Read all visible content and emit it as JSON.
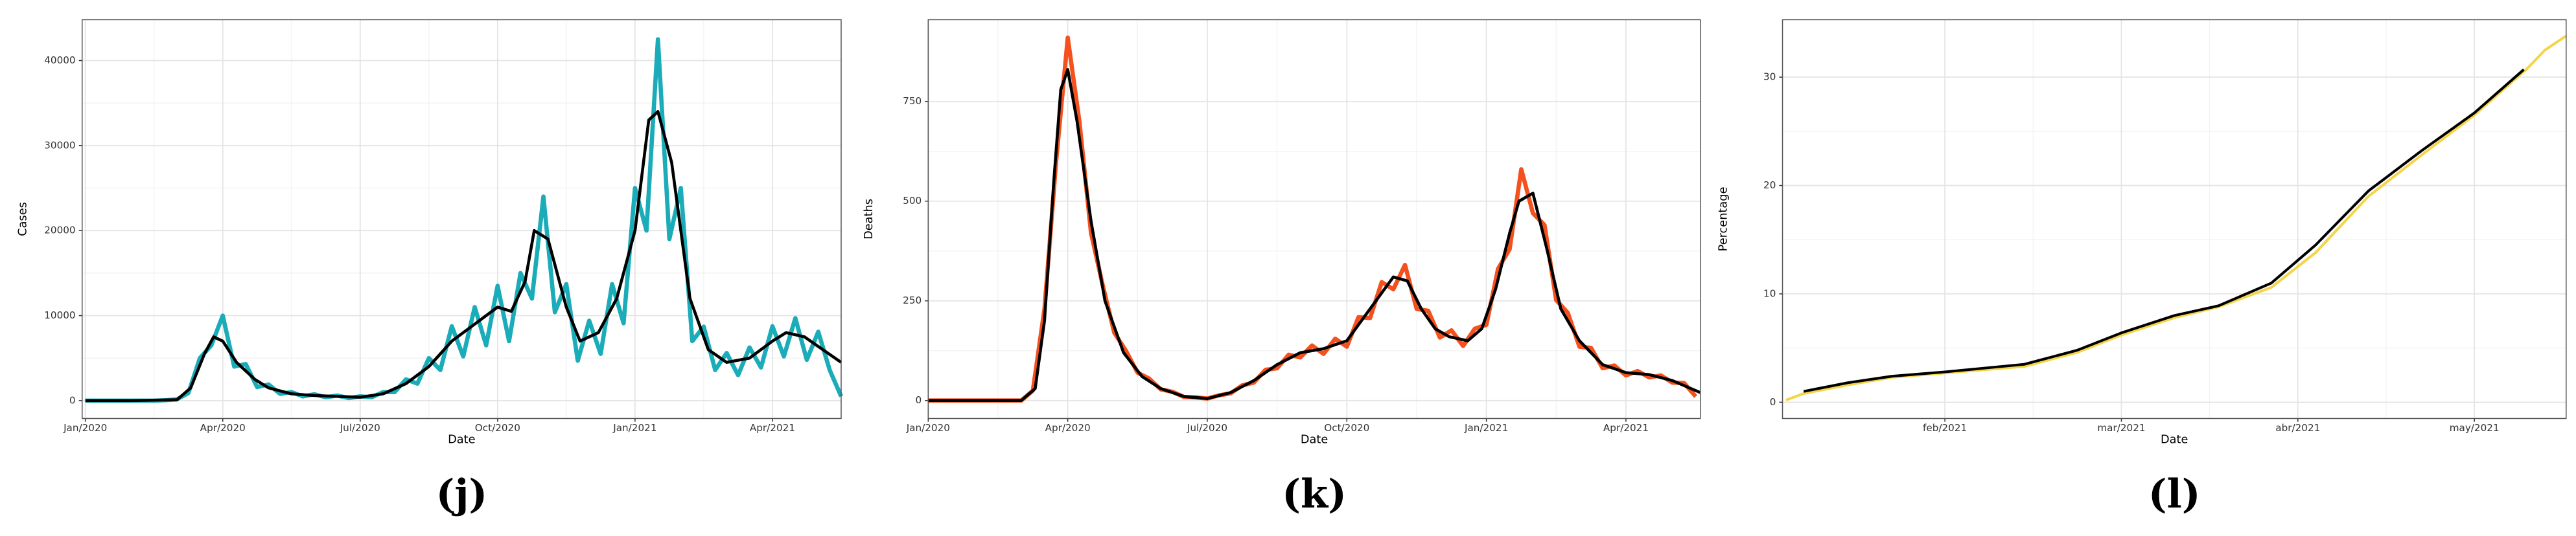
{
  "chart_data": [
    {
      "type": "line",
      "caption": "(j)",
      "xlabel": "Date",
      "ylabel": "Cases",
      "grid": true,
      "xlim": [
        -0.07,
        16.5
      ],
      "xticks": [
        {
          "value": 0,
          "label": "Jan/2020"
        },
        {
          "value": 3,
          "label": "Apr/2020"
        },
        {
          "value": 6,
          "label": "Jul/2020"
        },
        {
          "value": 9,
          "label": "Oct/2020"
        },
        {
          "value": 12,
          "label": "Jan/2021"
        },
        {
          "value": 15,
          "label": "Apr/2021"
        }
      ],
      "ylim": [
        -2100,
        44800
      ],
      "yticks": [
        0,
        10000,
        20000,
        30000,
        40000
      ],
      "series": [
        {
          "color": "#1aacb8",
          "width": 2.6,
          "x": [
            0,
            0.25,
            0.5,
            0.75,
            1,
            1.25,
            1.5,
            1.75,
            2,
            2.25,
            2.5,
            2.75,
            3,
            3.25,
            3.5,
            3.75,
            4,
            4.25,
            4.5,
            4.75,
            5,
            5.25,
            5.5,
            5.75,
            6,
            6.25,
            6.5,
            6.75,
            7,
            7.25,
            7.5,
            7.75,
            8,
            8.25,
            8.5,
            8.75,
            9,
            9.25,
            9.5,
            9.75,
            10,
            10.25,
            10.5,
            10.75,
            11,
            11.25,
            11.5,
            11.75,
            12,
            12.25,
            12.5,
            12.75,
            13,
            13.25,
            13.5,
            13.75,
            14,
            14.25,
            14.5,
            14.75,
            15,
            15.25,
            15.5,
            15.75,
            16,
            16.25,
            16.5
          ],
          "values": [
            0,
            0,
            0,
            0,
            0,
            0,
            0,
            50,
            150,
            900,
            5000,
            6500,
            10000,
            4000,
            4300,
            1600,
            1900,
            800,
            1000,
            500,
            750,
            400,
            600,
            300,
            500,
            400,
            1000,
            1000,
            2500,
            2000,
            5000,
            3600,
            8750,
            5200,
            11000,
            6500,
            13500,
            7000,
            15000,
            12000,
            24000,
            10400,
            13700,
            4700,
            9400,
            5500,
            13700,
            9100,
            25000,
            20000,
            42500,
            19000,
            25000,
            7000,
            8700,
            3600,
            5600,
            3000,
            6250,
            3900,
            8750,
            5200,
            9700,
            4800,
            8100,
            3600,
            500
          ]
        },
        {
          "color": "#000000",
          "width": 1.8,
          "x": [
            0,
            1,
            2,
            2.3,
            2.6,
            2.8,
            3.0,
            3.3,
            3.7,
            4,
            4.5,
            5,
            5.5,
            6,
            6.5,
            7,
            7.5,
            8,
            8.5,
            9,
            9.3,
            9.6,
            9.8,
            10.1,
            10.5,
            10.8,
            11.2,
            11.6,
            12,
            12.3,
            12.5,
            12.8,
            13.2,
            13.6,
            14,
            14.5,
            15,
            15.3,
            15.7,
            16.1,
            16.5
          ],
          "values": [
            0,
            0,
            100,
            1500,
            5500,
            7500,
            7000,
            4500,
            2500,
            1500,
            800,
            600,
            500,
            400,
            800,
            2000,
            4000,
            7000,
            9000,
            11000,
            10500,
            14000,
            20000,
            19000,
            11000,
            7000,
            8000,
            12000,
            20000,
            33000,
            34000,
            28000,
            12000,
            6000,
            4500,
            5000,
            7000,
            8000,
            7500,
            6000,
            4500
          ]
        }
      ]
    },
    {
      "type": "line",
      "caption": "(k)",
      "xlabel": "Date",
      "ylabel": "Deaths",
      "grid": true,
      "xlim": [
        0,
        16.6
      ],
      "xticks": [
        {
          "value": 0,
          "label": "Jan/2020"
        },
        {
          "value": 3,
          "label": "Apr/2020"
        },
        {
          "value": 6,
          "label": "Jul/2020"
        },
        {
          "value": 9,
          "label": "Oct/2020"
        },
        {
          "value": 12,
          "label": "Jan/2021"
        },
        {
          "value": 15,
          "label": "Apr/2021"
        }
      ],
      "ylim": [
        -45,
        955
      ],
      "yticks": [
        0,
        250,
        500,
        750
      ],
      "series": [
        {
          "color": "#f4511e",
          "width": 2.6,
          "x": [
            0,
            0.25,
            0.5,
            0.75,
            1,
            1.25,
            1.5,
            1.75,
            2,
            2.25,
            2.5,
            2.75,
            3,
            3.25,
            3.5,
            3.75,
            4,
            4.25,
            4.5,
            4.75,
            5,
            5.25,
            5.5,
            5.75,
            6,
            6.25,
            6.5,
            6.75,
            7,
            7.25,
            7.5,
            7.75,
            8,
            8.25,
            8.5,
            8.75,
            9,
            9.25,
            9.5,
            9.75,
            10,
            10.25,
            10.5,
            10.75,
            11,
            11.25,
            11.5,
            11.75,
            12,
            12.25,
            12.5,
            12.75,
            13,
            13.25,
            13.5,
            13.75,
            14,
            14.25,
            14.5,
            14.75,
            15,
            15.25,
            15.5,
            15.75,
            16,
            16.25,
            16.5
          ],
          "values": [
            0,
            0,
            0,
            0,
            0,
            0,
            0,
            0,
            0,
            25,
            230,
            600,
            910,
            700,
            420,
            290,
            170,
            125,
            70,
            55,
            28,
            22,
            9,
            8,
            5,
            13,
            18,
            38,
            45,
            77,
            81,
            115,
            108,
            138,
            117,
            155,
            135,
            209,
            207,
            297,
            279,
            340,
            230,
            225,
            158,
            176,
            137,
            180,
            190,
            330,
            380,
            580,
            470,
            440,
            252,
            220,
            135,
            132,
            81,
            88,
            63,
            74,
            58,
            63,
            45,
            44,
            10
          ]
        },
        {
          "color": "#000000",
          "width": 1.8,
          "x": [
            0,
            1,
            2,
            2.3,
            2.5,
            2.7,
            2.85,
            3.0,
            3.2,
            3.5,
            3.8,
            4.2,
            4.6,
            5,
            5.5,
            6,
            6.5,
            7,
            7.5,
            8,
            8.5,
            9,
            9.5,
            10,
            10.3,
            10.6,
            10.9,
            11.2,
            11.6,
            11.9,
            12.2,
            12.5,
            12.7,
            13,
            13.3,
            13.6,
            14,
            14.5,
            15,
            15.5,
            16,
            16.6
          ],
          "values": [
            0,
            0,
            0,
            30,
            200,
            550,
            780,
            830,
            700,
            450,
            250,
            120,
            60,
            30,
            10,
            5,
            20,
            50,
            90,
            120,
            130,
            150,
            230,
            310,
            300,
            230,
            180,
            160,
            150,
            180,
            280,
            420,
            500,
            520,
            380,
            230,
            150,
            90,
            70,
            65,
            50,
            20
          ]
        }
      ]
    },
    {
      "type": "line",
      "caption": "(l)",
      "xlabel": "Date",
      "ylabel": "Percentage",
      "grid": true,
      "xlim": [
        0.08,
        4.52
      ],
      "xticks": [
        {
          "value": 1,
          "label": "feb/2021"
        },
        {
          "value": 2,
          "label": "mar/2021"
        },
        {
          "value": 3,
          "label": "abr/2021"
        },
        {
          "value": 4,
          "label": "may/2021"
        }
      ],
      "ylim": [
        -1.5,
        35.3
      ],
      "yticks": [
        0,
        10,
        20,
        30
      ],
      "series": [
        {
          "color": "#f5d547",
          "width": 1.6,
          "x": [
            0.1,
            0.2,
            0.45,
            0.7,
            1,
            1.45,
            1.75,
            2,
            2.3,
            2.55,
            2.85,
            3.1,
            3.4,
            3.7,
            4,
            4.3,
            4.4,
            4.52
          ],
          "values": [
            0.2,
            0.8,
            1.6,
            2.3,
            2.7,
            3.3,
            4.6,
            6.2,
            7.8,
            8.8,
            10.6,
            13.8,
            19,
            22.8,
            26.5,
            30.8,
            32.5,
            33.8
          ]
        },
        {
          "color": "#000000",
          "width": 1.6,
          "x": [
            0.2,
            0.45,
            0.7,
            1,
            1.45,
            1.75,
            2,
            2.3,
            2.55,
            2.85,
            3.1,
            3.4,
            3.7,
            4,
            4.28
          ],
          "values": [
            1,
            1.8,
            2.4,
            2.8,
            3.5,
            4.8,
            6.4,
            8,
            8.9,
            11,
            14.5,
            19.5,
            23.2,
            26.7,
            30.7
          ]
        }
      ]
    }
  ]
}
